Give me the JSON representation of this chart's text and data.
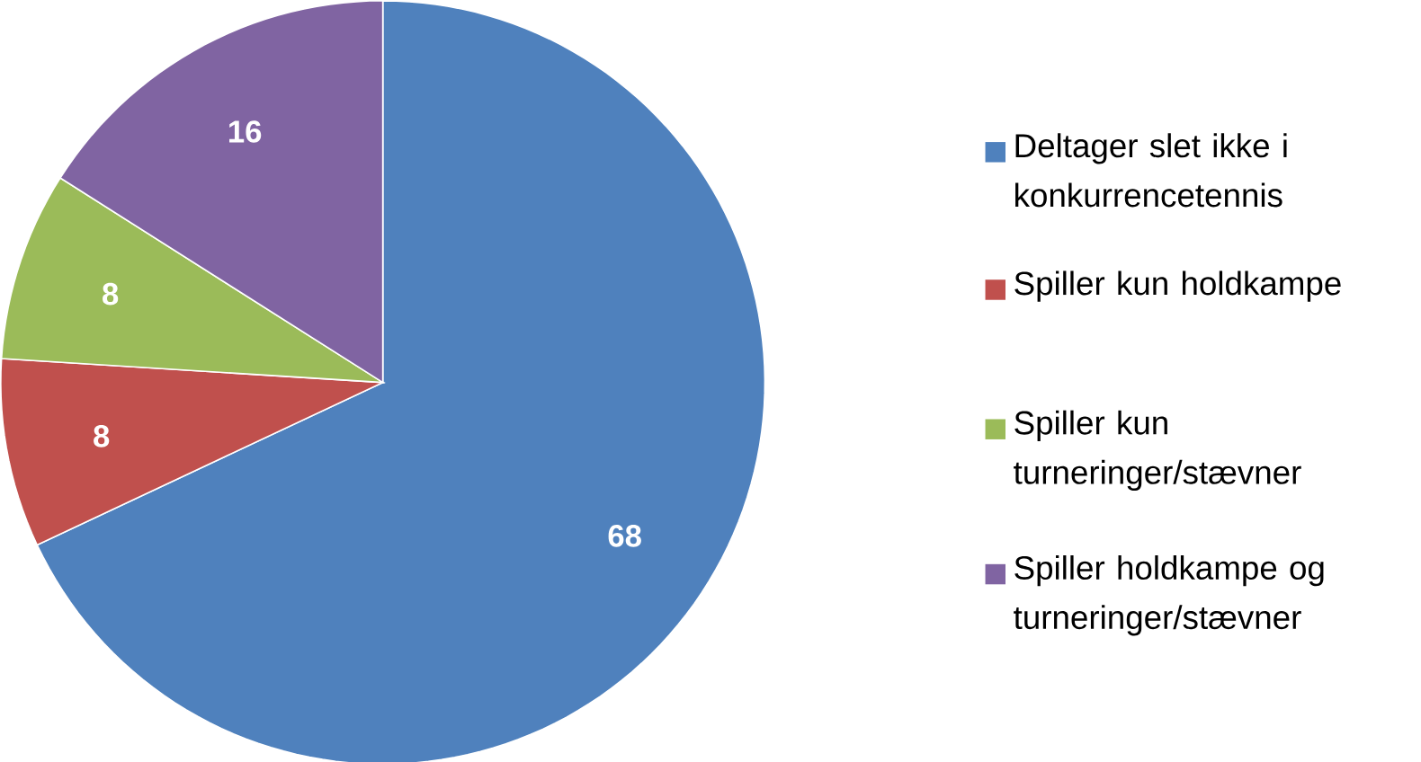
{
  "chart_data": {
    "type": "pie",
    "categories": [
      "Deltager slet ikke i konkurrencetennis",
      "Spiller kun holdkampe",
      "Spiller kun turneringer/stævner",
      "Spiller holdkampe og turneringer/stævner"
    ],
    "values": [
      68,
      8,
      8,
      16
    ],
    "colors": [
      "#4f81bd",
      "#c0504d",
      "#9bbb59",
      "#8064a2"
    ],
    "data_labels": true,
    "legend": "right"
  }
}
